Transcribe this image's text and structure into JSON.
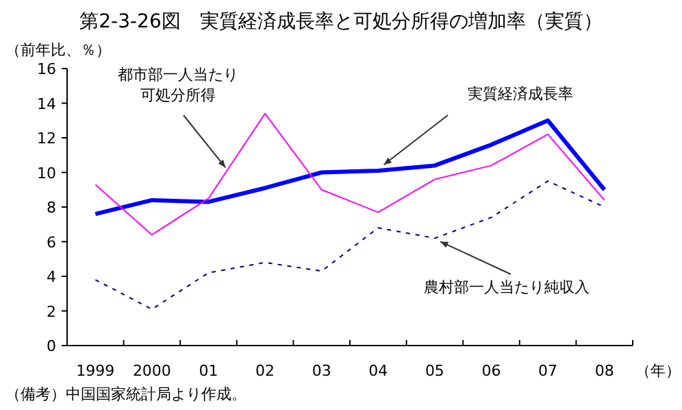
{
  "chart_data": {
    "type": "line",
    "title": "第2-3-26図　実質経済成長率と可処分所得の増加率（実質）",
    "ylabel": "（前年比、％）",
    "xlabel": "（年）",
    "categories": [
      "1999",
      "2000",
      "01",
      "02",
      "03",
      "04",
      "05",
      "06",
      "07",
      "08"
    ],
    "series": [
      {
        "name": "実質経済成長率",
        "color": "#0000ff",
        "line_style": "solid",
        "values": [
          7.6,
          8.4,
          8.3,
          9.1,
          10.0,
          10.1,
          10.4,
          11.6,
          13.0,
          9.0
        ]
      },
      {
        "name": "都市部一人当たり可処分所得",
        "color": "#ff00ff",
        "line_style": "solid",
        "values": [
          9.3,
          6.4,
          8.5,
          13.4,
          9.0,
          7.7,
          9.6,
          10.4,
          12.2,
          8.4
        ]
      },
      {
        "name": "農村部一人当たり純収入",
        "color": "#000080",
        "line_style": "dashed",
        "values": [
          3.8,
          2.1,
          4.2,
          4.8,
          4.3,
          6.8,
          6.2,
          7.4,
          9.5,
          8.0
        ]
      }
    ],
    "ylim": [
      0,
      16
    ],
    "yticks": [
      0,
      2,
      4,
      6,
      8,
      10,
      12,
      14,
      16
    ],
    "grid": false,
    "marker": "none",
    "annotations": [
      "（備考）中国国家統計局より作成。"
    ]
  }
}
